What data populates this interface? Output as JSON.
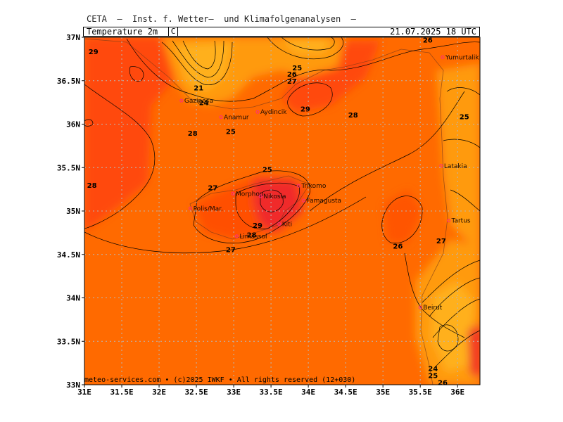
{
  "header": {
    "institute": "CETA  –  Inst. f. Wetter–  und Klimafolgenanalysen  –",
    "parameter": "Temperature_2m_",
    "unit": "C",
    "valid_time": "21.07.2025 18 UTC"
  },
  "footer": {
    "copyright": "meteo-services.com • (c)2025 IWKF • All rights reserved (12+030)"
  },
  "axes": {
    "lat_labels": [
      "37N",
      "36.5N",
      "36N",
      "35.5N",
      "35N",
      "34.5N",
      "34N",
      "33.5N",
      "33N"
    ],
    "lon_labels": [
      "31E",
      "31.5E",
      "32E",
      "32.5E",
      "33E",
      "33.5E",
      "34E",
      "34.5E",
      "35E",
      "35.5E",
      "36E"
    ]
  },
  "places": [
    {
      "name": "Yumurtalik",
      "lon": 35.8,
      "lat": 36.77
    },
    {
      "name": "Gazipasa",
      "lon": 32.3,
      "lat": 36.27
    },
    {
      "name": "Anamur",
      "lon": 32.83,
      "lat": 36.08
    },
    {
      "name": "Aydincik",
      "lon": 33.32,
      "lat": 36.14
    },
    {
      "name": "Latakia",
      "lon": 35.78,
      "lat": 35.52
    },
    {
      "name": "Trikomo",
      "lon": 33.87,
      "lat": 35.29
    },
    {
      "name": "Morphou",
      "lon": 32.99,
      "lat": 35.2
    },
    {
      "name": "Nikosia",
      "lon": 33.36,
      "lat": 35.17
    },
    {
      "name": "Famagusta",
      "lon": 33.94,
      "lat": 35.12
    },
    {
      "name": "Polis/Mar.",
      "lon": 32.42,
      "lat": 35.03
    },
    {
      "name": "Kiti",
      "lon": 33.61,
      "lat": 34.85
    },
    {
      "name": "Limassol",
      "lon": 33.04,
      "lat": 34.71
    },
    {
      "name": "Tartus",
      "lon": 35.88,
      "lat": 34.89
    },
    {
      "name": "Beirut",
      "lon": 35.5,
      "lat": 33.89
    }
  ],
  "contour_labels": [
    {
      "text": "29",
      "lon": 31.12,
      "lat": 36.84
    },
    {
      "text": "26",
      "lon": 35.6,
      "lat": 36.97
    },
    {
      "text": "25",
      "lon": 33.85,
      "lat": 36.65
    },
    {
      "text": "26",
      "lon": 33.78,
      "lat": 36.58
    },
    {
      "text": "27",
      "lon": 33.78,
      "lat": 36.5
    },
    {
      "text": "21",
      "lon": 32.53,
      "lat": 36.42
    },
    {
      "text": "24",
      "lon": 32.6,
      "lat": 36.25
    },
    {
      "text": "29",
      "lon": 33.96,
      "lat": 36.18
    },
    {
      "text": "28",
      "lon": 34.6,
      "lat": 36.11
    },
    {
      "text": "25",
      "lon": 36.09,
      "lat": 36.09
    },
    {
      "text": "28",
      "lon": 32.45,
      "lat": 35.9
    },
    {
      "text": "25",
      "lon": 32.96,
      "lat": 35.92
    },
    {
      "text": "25",
      "lon": 33.45,
      "lat": 35.48
    },
    {
      "text": "28",
      "lon": 31.1,
      "lat": 35.3
    },
    {
      "text": "27",
      "lon": 32.72,
      "lat": 35.27
    },
    {
      "text": "29",
      "lon": 33.32,
      "lat": 34.84
    },
    {
      "text": "28",
      "lon": 33.24,
      "lat": 34.73
    },
    {
      "text": "27",
      "lon": 32.96,
      "lat": 34.56
    },
    {
      "text": "26",
      "lon": 35.2,
      "lat": 34.6
    },
    {
      "text": "27",
      "lon": 35.78,
      "lat": 34.66
    },
    {
      "text": "24",
      "lon": 35.67,
      "lat": 33.19
    },
    {
      "text": "25",
      "lon": 35.67,
      "lat": 33.11
    },
    {
      "text": "26",
      "lon": 35.8,
      "lat": 33.03
    }
  ],
  "colors": {
    "warm_28": "#ff6a00",
    "hot_29": "#ff4a10",
    "hottest": "#f02a2a",
    "cool_25": "#ff9a10",
    "cool_23": "#ffb01a",
    "cool_21": "#ffc02a",
    "grid": "#b8b8b8",
    "contour": "#000000"
  }
}
